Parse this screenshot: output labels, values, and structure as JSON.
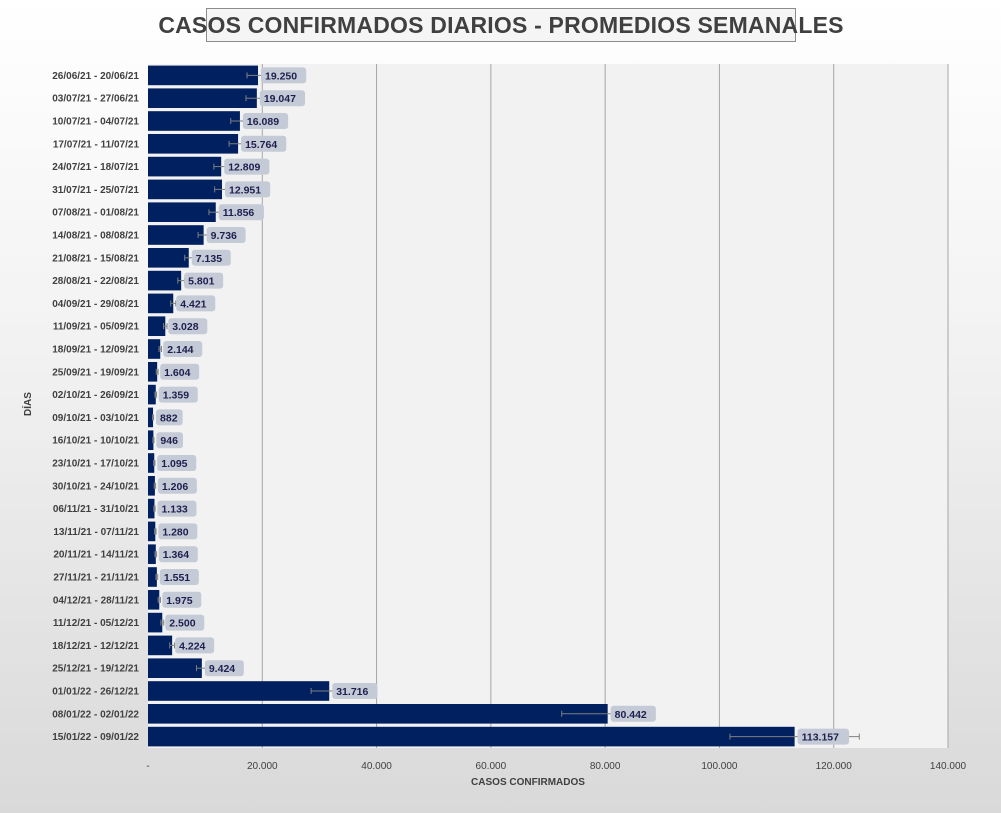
{
  "chart_data": {
    "type": "bar",
    "orientation": "horizontal",
    "title": "CASOS CONFIRMADOS DIARIOS - PROMEDIOS SEMANALES",
    "xlabel": "CASOS CONFIRMADOS",
    "ylabel": "DÍAS",
    "xlim": [
      0,
      140000
    ],
    "x_ticks": [
      0,
      20000,
      40000,
      60000,
      80000,
      100000,
      120000,
      140000
    ],
    "x_tick_labels": [
      "-",
      "20.000",
      "40.000",
      "60.000",
      "80.000",
      "100.000",
      "120.000",
      "140.000"
    ],
    "grid": "vertical",
    "legend": "none",
    "categories": [
      "26/06/21 - 20/06/21",
      "03/07/21 - 27/06/21",
      "10/07/21 - 04/07/21",
      "17/07/21 - 11/07/21",
      "24/07/21 - 18/07/21",
      "31/07/21 - 25/07/21",
      "07/08/21 - 01/08/21",
      "14/08/21 - 08/08/21",
      "21/08/21 - 15/08/21",
      "28/08/21 - 22/08/21",
      "04/09/21 - 29/08/21",
      "11/09/21 - 05/09/21",
      "18/09/21 - 12/09/21",
      "25/09/21 - 19/09/21",
      "02/10/21 - 26/09/21",
      "09/10/21 - 03/10/21",
      "16/10/21 - 10/10/21",
      "23/10/21 - 17/10/21",
      "30/10/21 - 24/10/21",
      "06/11/21 - 31/10/21",
      "13/11/21 - 07/11/21",
      "20/11/21 - 14/11/21",
      "27/11/21 - 21/11/21",
      "04/12/21 - 28/11/21",
      "11/12/21 - 05/12/21",
      "18/12/21 - 12/12/21",
      "25/12/21 - 19/12/21",
      "01/01/22 - 26/12/21",
      "08/01/22 - 02/01/22",
      "15/01/22 - 09/01/22"
    ],
    "values": [
      19250,
      19047,
      16089,
      15764,
      12809,
      12951,
      11856,
      9736,
      7135,
      5801,
      4421,
      3028,
      2144,
      1604,
      1359,
      882,
      946,
      1095,
      1206,
      1133,
      1280,
      1364,
      1551,
      1975,
      2500,
      4224,
      9424,
      31716,
      80442,
      113157
    ],
    "value_labels": [
      "19.250",
      "19.047",
      "16.089",
      "15.764",
      "12.809",
      "12.951",
      "11.856",
      "9.736",
      "7.135",
      "5.801",
      "4.421",
      "3.028",
      "2.144",
      "1.604",
      "1.359",
      "882",
      "946",
      "1.095",
      "1.206",
      "1.133",
      "1.280",
      "1.364",
      "1.551",
      "1.975",
      "2.500",
      "4.224",
      "9.424",
      "31.716",
      "80.442",
      "113.157"
    ],
    "error_bars": "±10% of value",
    "colors": {
      "bar": "#002060",
      "label_box": "#c5cbd6",
      "label_text": "#1f1f4f",
      "plot_bg": "#f2f2f2",
      "grid": "#a6a6a6",
      "error_bar": "#7f7f7f",
      "axis_text": "#404040"
    }
  }
}
